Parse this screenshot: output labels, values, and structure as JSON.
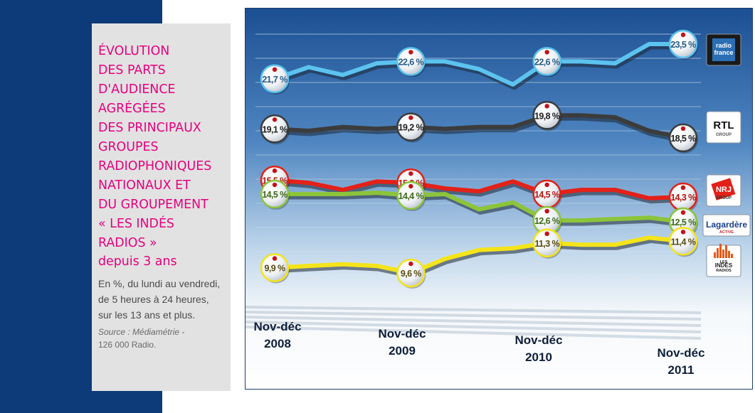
{
  "panel": {
    "title": "ÉVOLUTION DES PARTS D'AUDIENCE AGRÉGÉES DES PRINCIPAUX GROUPES RADIOPHONIQUES NATIONAUX ET DU GROUPEMENT « LES INDÉS RADIOS »",
    "title_lines": [
      "ÉVOLUTION",
      "DES PARTS",
      "D'AUDIENCE",
      "AGRÉGÉES",
      "DES PRINCIPAUX",
      "GROUPES",
      "RADIOPHONIQUES",
      "NATIONAUX ET",
      "DU GROUPEMENT",
      "« LES INDÉS",
      "RADIOS »"
    ],
    "subtitle": "depuis 3 ans",
    "description": "En %, du lundi au vendredi, de 5 heures à 24 heures, sur les 13 ans et plus.",
    "source_label": "Source : Médiamétrie -",
    "source_detail": "126 000 Radio."
  },
  "colors": {
    "accent": "#e6007e",
    "band": "#0d3a78",
    "radio_france": "#5cc3ee",
    "rtl": "#3c3c3c",
    "nrj": "#e32119",
    "lagardere": "#8cc43a",
    "indes": "#f4e419"
  },
  "chart_data": {
    "type": "line",
    "unit": "%",
    "x_labels": [
      "Nov-déc 2008",
      "Nov-déc 2009",
      "Nov-déc 2010",
      "Nov-déc 2011"
    ],
    "x_label_lines": [
      [
        "Nov-déc",
        "2008"
      ],
      [
        "Nov-déc",
        "2009"
      ],
      [
        "Nov-déc",
        "2010"
      ],
      [
        "Nov-déc",
        "2011"
      ]
    ],
    "points_per_series": 13,
    "labeled_indices": [
      0,
      4,
      8,
      12
    ],
    "legend_placement": "right",
    "grid": true,
    "series": [
      {
        "key": "radio_france",
        "logo": [
          "radio",
          "france"
        ],
        "values": [
          21.7,
          22.3,
          21.9,
          22.5,
          22.6,
          22.6,
          22.2,
          21.4,
          22.6,
          22.6,
          22.5,
          23.5,
          23.5
        ],
        "labels": [
          "21,7 %",
          "22,6 %",
          "22,6 %",
          "23,5 %"
        ]
      },
      {
        "key": "rtl",
        "logo": [
          "RTL",
          "GROUP"
        ],
        "values": [
          19.1,
          19.0,
          19.2,
          19.1,
          19.2,
          19.1,
          19.2,
          19.2,
          19.8,
          19.8,
          19.7,
          19.0,
          18.5
        ],
        "labels": [
          "19,1 %",
          "19,2 %",
          "19,8 %",
          "18,5 %"
        ]
      },
      {
        "key": "nrj",
        "logo": [
          "NRJ",
          "GROUP"
        ],
        "values": [
          15.5,
          15.3,
          14.8,
          15.4,
          15.3,
          14.9,
          14.7,
          15.4,
          14.5,
          14.8,
          14.8,
          14.2,
          14.3
        ],
        "labels": [
          "15,5 %",
          "15,3 %",
          "14,5 %",
          "14,3 %"
        ]
      },
      {
        "key": "lagardere",
        "logo": [
          "Lagardère",
          "ACTIVE"
        ],
        "values": [
          14.5,
          14.5,
          14.5,
          14.6,
          14.4,
          14.5,
          13.4,
          13.9,
          12.6,
          12.6,
          12.7,
          12.8,
          12.5
        ],
        "labels": [
          "14,5 %",
          "14,4 %",
          "12,6 %",
          "12,5 %"
        ]
      },
      {
        "key": "indes",
        "logo": [
          "LES",
          "INDÉS",
          "RADIOS"
        ],
        "values": [
          9.9,
          10.0,
          10.1,
          10.0,
          9.6,
          10.4,
          10.9,
          11.0,
          11.3,
          11.2,
          11.2,
          11.6,
          11.4
        ],
        "labels": [
          "9,9 %",
          "9,6 %",
          "11,3 %",
          "11,4 %"
        ]
      }
    ]
  }
}
